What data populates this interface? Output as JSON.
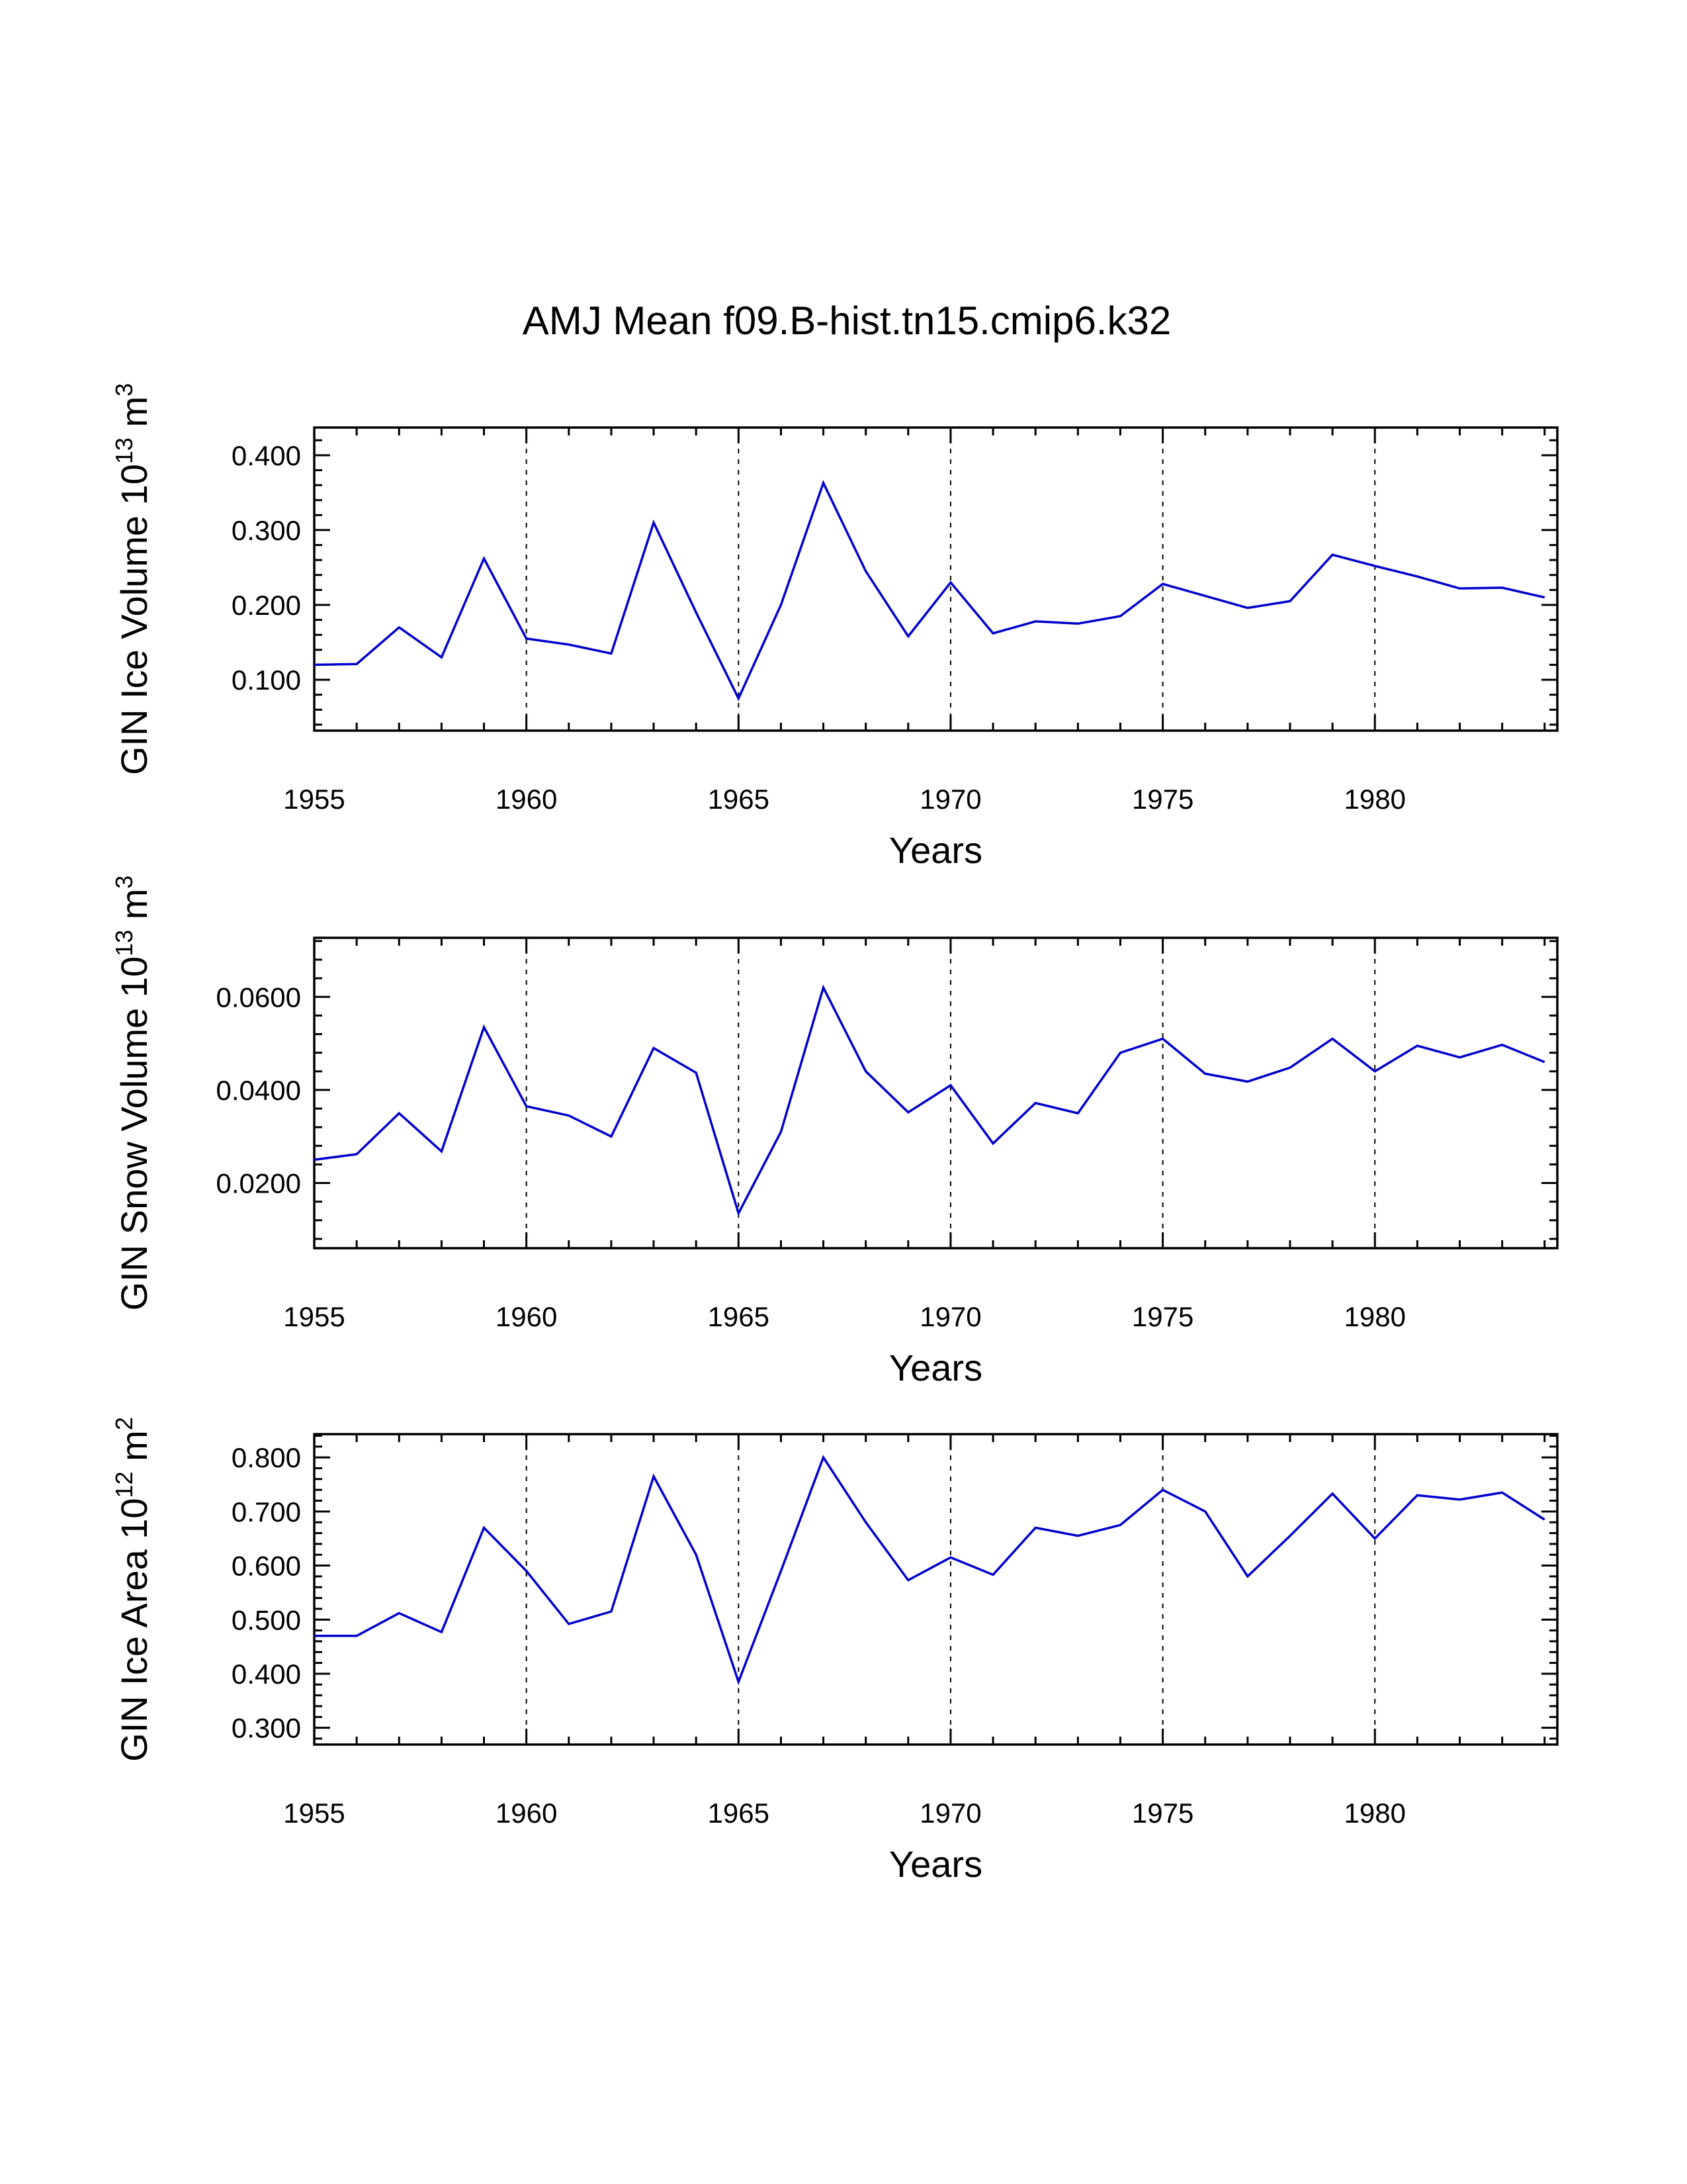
{
  "figure_title": "AMJ Mean f09.B-hist.tn15.cmip6.k32",
  "line_color": "#0000cd",
  "x_axis": {
    "label": "Years",
    "xlim": [
      1955,
      1984.3
    ],
    "major_ticks": [
      1955,
      1960,
      1965,
      1970,
      1975,
      1980
    ],
    "minor_step": 1,
    "grid_years": [
      1960,
      1965,
      1970,
      1975,
      1980
    ],
    "grid_style": "dashed"
  },
  "chart_data": [
    {
      "id": "gin-ice-volume",
      "type": "line",
      "xlabel": "Years",
      "ylabel": "GIN Ice Volume 10^13 m^3",
      "ylabel_parts": [
        {
          "t": "GIN Ice Volume 10",
          "sup": false
        },
        {
          "t": "13",
          "sup": true
        },
        {
          "t": " m",
          "sup": false
        },
        {
          "t": "3",
          "sup": true
        }
      ],
      "ylim": [
        0.032,
        0.437
      ],
      "yticks": [
        0.1,
        0.2,
        0.3,
        0.4
      ],
      "ytick_labels": [
        "0.100",
        "0.200",
        "0.300",
        "0.400"
      ],
      "y_minor_step": 0.02,
      "x": [
        1955,
        1956,
        1957,
        1958,
        1959,
        1960,
        1961,
        1962,
        1963,
        1964,
        1965,
        1966,
        1967,
        1968,
        1969,
        1970,
        1971,
        1972,
        1973,
        1974,
        1975,
        1976,
        1977,
        1978,
        1979,
        1980,
        1981,
        1982,
        1983,
        1984
      ],
      "values": [
        0.12,
        0.121,
        0.17,
        0.13,
        0.262,
        0.155,
        0.147,
        0.135,
        0.31,
        0.19,
        0.075,
        0.2,
        0.363,
        0.245,
        0.158,
        0.23,
        0.162,
        0.178,
        0.175,
        0.185,
        0.228,
        0.212,
        0.196,
        0.205,
        0.267,
        0.252,
        0.238,
        0.222,
        0.223,
        0.21
      ]
    },
    {
      "id": "gin-snow-volume",
      "type": "line",
      "xlabel": "Years",
      "ylabel": "GIN Snow Volume 10^13 m^3",
      "ylabel_parts": [
        {
          "t": "GIN Snow Volume 10",
          "sup": false
        },
        {
          "t": "13",
          "sup": true
        },
        {
          "t": " m",
          "sup": false
        },
        {
          "t": "3",
          "sup": true
        }
      ],
      "ylim": [
        0.006,
        0.0727
      ],
      "yticks": [
        0.02,
        0.04,
        0.06
      ],
      "ytick_labels": [
        "0.0200",
        "0.0400",
        "0.0600"
      ],
      "y_minor_step": 0.004,
      "x": [
        1955,
        1956,
        1957,
        1958,
        1959,
        1960,
        1961,
        1962,
        1963,
        1964,
        1965,
        1966,
        1967,
        1968,
        1969,
        1970,
        1971,
        1972,
        1973,
        1974,
        1975,
        1976,
        1977,
        1978,
        1979,
        1980,
        1981,
        1982,
        1983,
        1984
      ],
      "values": [
        0.025,
        0.0262,
        0.035,
        0.0268,
        0.0535,
        0.0365,
        0.0345,
        0.03,
        0.049,
        0.0437,
        0.0135,
        0.031,
        0.062,
        0.044,
        0.0352,
        0.041,
        0.0285,
        0.0372,
        0.035,
        0.048,
        0.051,
        0.0435,
        0.0418,
        0.0448,
        0.051,
        0.044,
        0.0495,
        0.047,
        0.0497,
        0.046
      ]
    },
    {
      "id": "gin-ice-area",
      "type": "line",
      "xlabel": "Years",
      "ylabel": "GIN Ice Area 10^12 m^2",
      "ylabel_parts": [
        {
          "t": "GIN Ice Area 10",
          "sup": false
        },
        {
          "t": "12",
          "sup": true
        },
        {
          "t": " m",
          "sup": false
        },
        {
          "t": "2",
          "sup": true
        }
      ],
      "ylim": [
        0.269,
        0.843
      ],
      "yticks": [
        0.3,
        0.4,
        0.5,
        0.6,
        0.7,
        0.8
      ],
      "ytick_labels": [
        "0.300",
        "0.400",
        "0.500",
        "0.600",
        "0.700",
        "0.800"
      ],
      "y_minor_step": 0.02,
      "x": [
        1955,
        1956,
        1957,
        1958,
        1959,
        1960,
        1961,
        1962,
        1963,
        1964,
        1965,
        1966,
        1967,
        1968,
        1969,
        1970,
        1971,
        1972,
        1973,
        1974,
        1975,
        1976,
        1977,
        1978,
        1979,
        1980,
        1981,
        1982,
        1983,
        1984
      ],
      "values": [
        0.47,
        0.47,
        0.512,
        0.477,
        0.67,
        0.59,
        0.492,
        0.515,
        0.765,
        0.62,
        0.385,
        0.59,
        0.8,
        0.68,
        0.573,
        0.615,
        0.583,
        0.67,
        0.655,
        0.675,
        0.74,
        0.7,
        0.58,
        0.655,
        0.733,
        0.65,
        0.73,
        0.722,
        0.735,
        0.685
      ]
    }
  ]
}
